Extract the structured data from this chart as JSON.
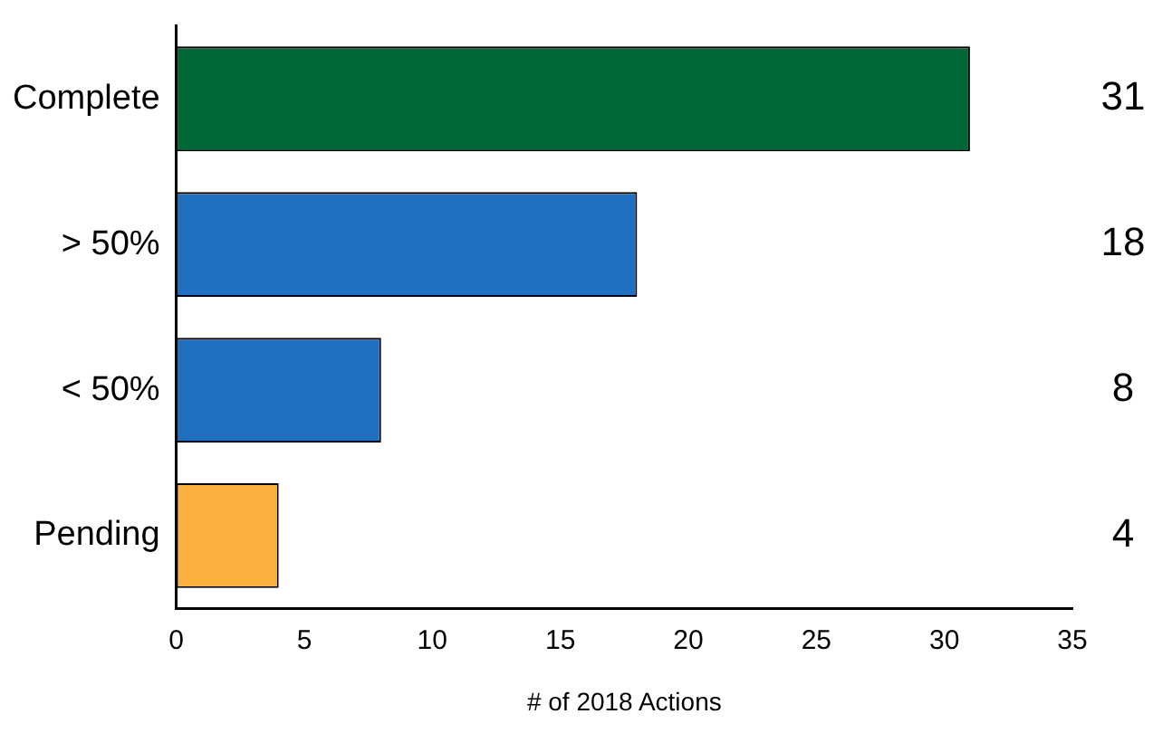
{
  "chart_data": {
    "type": "bar",
    "orientation": "horizontal",
    "xlabel": "# of 2018 Actions",
    "categories": [
      "Complete",
      "> 50%",
      "< 50%",
      "Pending"
    ],
    "values": [
      31,
      18,
      8,
      4
    ],
    "colors": [
      "#006837",
      "#1f70c1",
      "#1f70c1",
      "#fbb040"
    ],
    "xlim": [
      0,
      35
    ],
    "xticks": [
      0,
      5,
      10,
      15,
      20,
      25,
      30,
      35
    ],
    "grid": false,
    "legend": false,
    "data_labels": true
  }
}
